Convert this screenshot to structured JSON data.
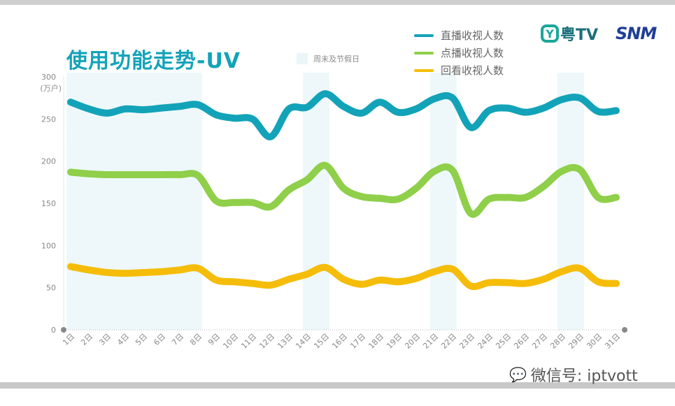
{
  "title": "使用功能走势-UV",
  "weekend_legend": "周末及节假日",
  "logos": {
    "yue_tv": "粤TV",
    "snm": "SNM"
  },
  "watermark": {
    "icon": "wechat-icon",
    "text": "微信号: iptvott"
  },
  "chart_data": {
    "type": "line",
    "title": "使用功能走势-UV",
    "ylabel": "(万户)",
    "ylim": [
      0,
      300
    ],
    "yticks": [
      0,
      50,
      100,
      150,
      200,
      250,
      300
    ],
    "grid": false,
    "legend_placement": "top-right",
    "categories": [
      "1日",
      "2日",
      "3日",
      "4日",
      "5日",
      "6日",
      "7日",
      "8日",
      "9日",
      "10日",
      "11日",
      "12日",
      "13日",
      "14日",
      "15日",
      "16日",
      "17日",
      "18日",
      "19日",
      "20日",
      "21日",
      "22日",
      "23日",
      "24日",
      "25日",
      "26日",
      "27日",
      "28日",
      "29日",
      "30日",
      "31日"
    ],
    "shaded_ranges": [
      [
        "1日",
        "8日"
      ],
      [
        "14日",
        "15日"
      ],
      [
        "21日",
        "22日"
      ],
      [
        "28日",
        "29日"
      ]
    ],
    "shade_color": "#eef8fa",
    "series": [
      {
        "name": "直播收视人数",
        "color": "#13a3b8",
        "values": [
          270,
          262,
          257,
          262,
          261,
          263,
          265,
          267,
          255,
          251,
          250,
          229,
          262,
          264,
          280,
          265,
          257,
          270,
          258,
          262,
          274,
          275,
          240,
          260,
          263,
          258,
          263,
          273,
          275,
          259,
          260
        ]
      },
      {
        "name": "点播收视人数",
        "color": "#8fcf4a",
        "values": [
          187,
          185,
          184,
          184,
          184,
          184,
          184,
          183,
          153,
          151,
          151,
          146,
          166,
          178,
          195,
          168,
          158,
          156,
          155,
          168,
          188,
          189,
          138,
          155,
          157,
          157,
          170,
          188,
          190,
          157,
          157
        ]
      },
      {
        "name": "回看收视人数",
        "color": "#f5bd0a",
        "values": [
          75,
          71,
          68,
          67,
          68,
          69,
          71,
          73,
          59,
          57,
          55,
          53,
          60,
          66,
          74,
          60,
          54,
          59,
          57,
          61,
          69,
          72,
          52,
          56,
          56,
          55,
          60,
          69,
          73,
          57,
          55
        ]
      }
    ]
  }
}
